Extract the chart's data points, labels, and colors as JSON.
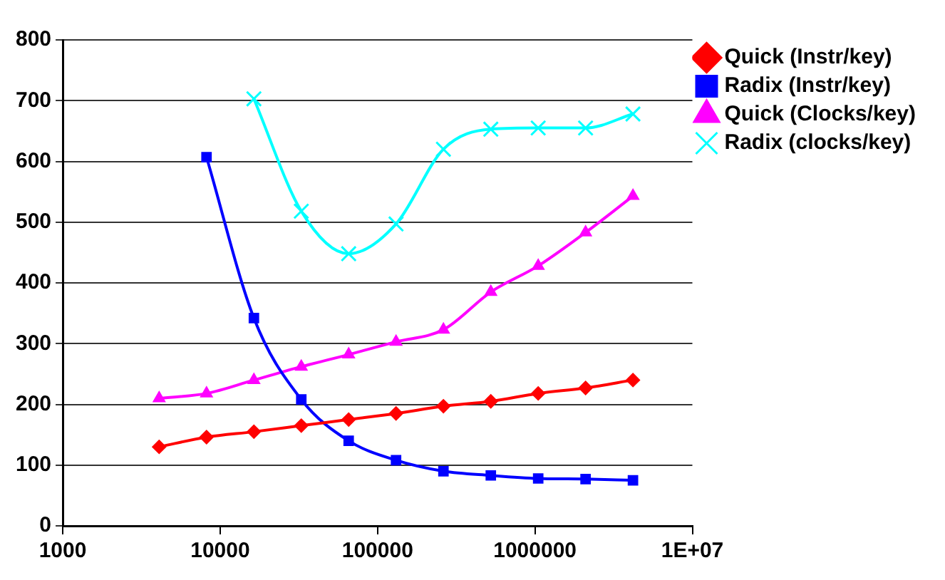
{
  "chart_data": {
    "type": "line",
    "log": "x",
    "grid": "y",
    "legend": "right",
    "x": [
      4096,
      8192,
      16384,
      32768,
      65536,
      131072,
      262144,
      524288,
      1048576,
      2097152,
      4194304
    ],
    "xlim": [
      1000,
      10000000
    ],
    "xticks": [
      1000,
      10000,
      100000,
      1000000,
      {
        "value": 10000000,
        "label": "1E+07"
      }
    ],
    "ylim": [
      0,
      800
    ],
    "yticks": [
      0,
      100,
      200,
      300,
      400,
      500,
      600,
      700,
      800
    ],
    "series": [
      {
        "name": "Quick (Instr/key)",
        "color": "#ff0000",
        "marker": "diamond",
        "values": [
          130,
          146,
          155,
          165,
          175,
          185,
          197,
          205,
          218,
          227,
          240
        ]
      },
      {
        "name": "Radix (Instr/key)",
        "color": "#0000ff",
        "marker": "square",
        "values": [
          null,
          607,
          342,
          208,
          140,
          108,
          90,
          83,
          78,
          77,
          75
        ]
      },
      {
        "name": "Quick (Clocks/key)",
        "color": "#ff00ff",
        "marker": "triangle",
        "values": [
          210,
          218,
          240,
          262,
          282,
          303,
          323,
          385,
          428,
          483,
          543
        ]
      },
      {
        "name": "Radix (clocks/key)",
        "color": "#00ffff",
        "marker": "cross",
        "values": [
          null,
          null,
          703,
          518,
          448,
          497,
          620,
          653,
          655,
          655,
          678
        ]
      }
    ]
  }
}
